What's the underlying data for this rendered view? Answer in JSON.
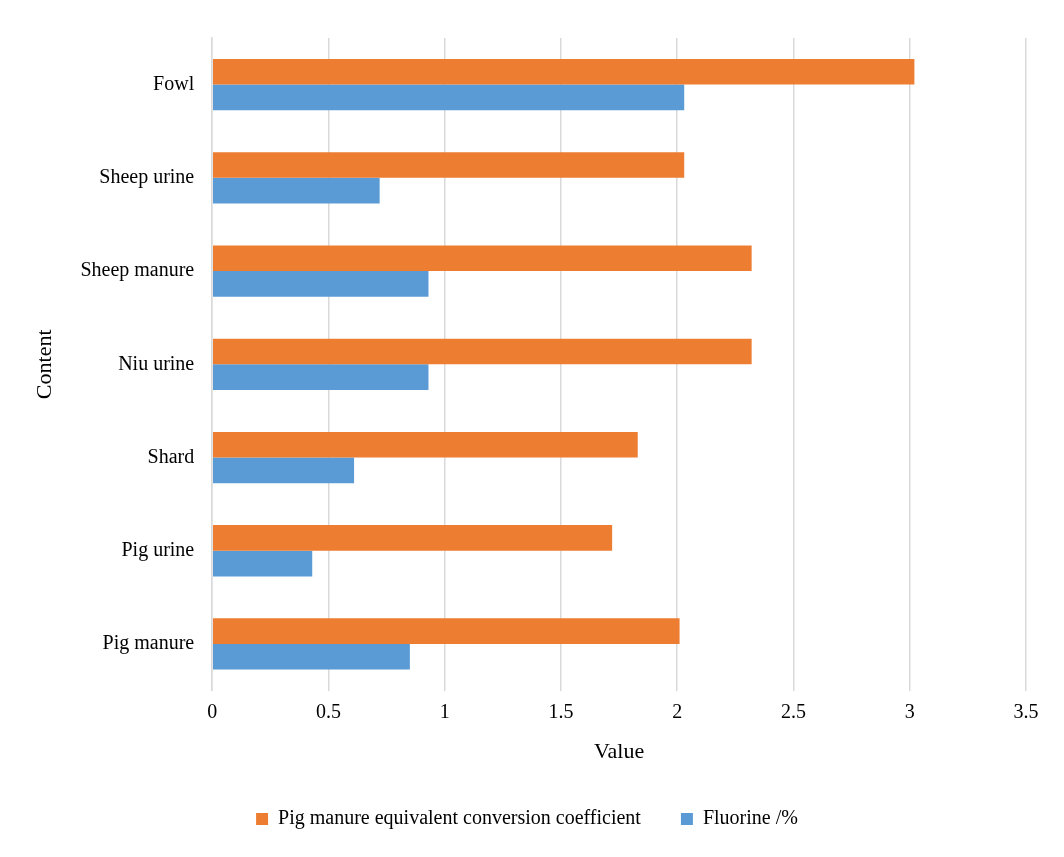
{
  "chart_data": {
    "type": "bar",
    "orientation": "horizontal",
    "xlabel": "Value",
    "ylabel": "Content",
    "categories": [
      "Fowl",
      "Sheep urine",
      "Sheep manure",
      "Niu urine",
      "Shard",
      "Pig urine",
      "Pig manure"
    ],
    "series": [
      {
        "name": "Pig manure equivalent conversion coefficient",
        "color": "#ed7d31",
        "values": [
          3.02,
          2.03,
          2.32,
          2.32,
          1.83,
          1.72,
          2.01
        ]
      },
      {
        "name": "Fluorine /%",
        "color": "#5b9bd5",
        "values": [
          2.03,
          0.72,
          0.93,
          0.93,
          0.61,
          0.43,
          0.85
        ]
      }
    ],
    "xlim": [
      0,
      3.5
    ],
    "xticks": [
      0,
      0.5,
      1,
      1.5,
      2,
      2.5,
      3,
      3.5
    ],
    "grid": "x",
    "legend": "bottom"
  }
}
